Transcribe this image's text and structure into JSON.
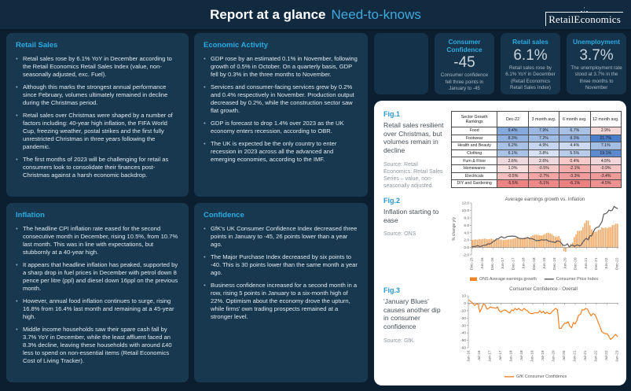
{
  "header": {
    "title_bold": "Report at a glance",
    "title_light": "Need-to-knows",
    "logo_text": "RetailEconomics"
  },
  "colors": {
    "background": "#0c1f30",
    "panel": "#17384f",
    "accent_blue": "#2cabe2",
    "body_text": "#e2eaf1",
    "figure_panel": "#ffffff",
    "orange": "#ef8426",
    "line_gray": "#595959"
  },
  "sections": {
    "retail_sales": {
      "title": "Retail Sales",
      "items": [
        "Retail sales rose by 6.1% YoY in December according to the Retail Economics Retail Sales Index (value, non-seasonally adjusted, exc. Fuel).",
        "Although this marks the strongest annual performance since February, volumes ultimately remained in decline during the Christmas period.",
        "Retail sales over Christmas were shaped by a number of factors including: 40-year high inflation, the FIFA World Cup, freezing weather, postal strikes and the first fully unrestricted Christmas in three years following the pandemic.",
        "The first months of 2023 will be challenging for retail as consumers look to consolidate their finances post-Christmas against a harsh economic backdrop."
      ]
    },
    "inflation": {
      "title": "Inflation",
      "items": [
        "The headline CPI inflation rate eased for the second consecutive month in December, rising 10.5%, from 10.7% last month. This was in line with expectations, but stubbornly at a 40-year high.",
        "It appears that headline inflation has peaked, supported by a sharp drop in fuel prices in December with petrol down 8 pence per litre (ppl) and diesel down 16ppl on the previous month.",
        "However, annual food inflation continues to surge, rising 16.8% from 16.4% last month and remaining at a 45-year high.",
        "Middle income households saw their spare cash fall by 3.7% YoY in December, while the least affluent faced an 8.3% decline, leaving these households with around £40 less to spend on non-essential items (Retail Economics Cost of Living Tracker)."
      ]
    },
    "economic_activity": {
      "title": "Economic Activity",
      "items": [
        "GDP rose by an estimated 0.1% in November, following growth of 0.5% in October. On a quarterly basis, GDP fell by 0.3% in the three months to November.",
        "Services and consumer-facing services grew by 0.2% and 0.4% respectively in November. Production output decreased by 0.2%, while the construction sector saw flat growth.",
        "GDP is forecast to drop 1.4% over 2023 as the UK economy enters recession, according to OBR.",
        "The UK is expected be the only country to enter recession in 2023 across all the advanced and emerging economies, according to the IMF."
      ]
    },
    "confidence": {
      "title": "Confidence",
      "items": [
        "GfK's UK Consumer Confidence Index decreased three points in January to -45, 26 points lower than a year ago.",
        "The Major Purchase Index decreased by six points to -40. This is 30 points lower than the same month a year ago.",
        "Business confidence increased for a second month in a row, rising 5 points in January to a six-month high of 22%. Optimism about the economy drove the upturn, while firms' own trading prospects remained at a stronger level."
      ]
    }
  },
  "stat_cards": [
    {
      "title": "Consumer Confidence",
      "value": "-45",
      "desc": "Consumer confidence fell three points in January to -45"
    },
    {
      "title": "Retail sales",
      "value": "6.1%",
      "desc": "Retail sales rose by 6.1% YoY in December (Retail Economics Retail Sales Index)"
    },
    {
      "title": "Unemployment",
      "value": "3.7%",
      "desc": "The unemployment rate stood at 3.7% in the three months to November"
    }
  ],
  "figures": {
    "fig1": {
      "label": "Fig.1",
      "caption": "Retail sales resilient over Christmas, but volumes remain in decline",
      "source": "Source: Retail Economics: Retail Sales Series – value, non-seasonally adjusted."
    },
    "fig2": {
      "label": "Fig.2",
      "caption": "Inflation starting to ease",
      "source": "Source: ONS"
    },
    "fig3": {
      "label": "Fig.3",
      "caption": "'January Blues' causes another dip in consumer confidence",
      "source": "Source: GfK"
    }
  },
  "chart_data": [
    {
      "type": "table",
      "name": "sector-growth-rankings",
      "headers": [
        "Sector Growth Rankings",
        "Dec-22",
        "3 month avg.",
        "6 month avg.",
        "12 month avg."
      ],
      "rows": [
        {
          "label": "Food",
          "cells": [
            {
              "v": "9.4%",
              "c": "#86a9dc"
            },
            {
              "v": "7.9%",
              "c": "#9bb7e2"
            },
            {
              "v": "6.7%",
              "c": "#a8c0e4"
            },
            {
              "v": "2.9%",
              "c": "#f3d7d7"
            }
          ]
        },
        {
          "label": "Footwear",
          "cells": [
            {
              "v": "8.3%",
              "c": "#90b0df"
            },
            {
              "v": "7.2%",
              "c": "#a0bbe3"
            },
            {
              "v": "8.3%",
              "c": "#93b2e0"
            },
            {
              "v": "21.7%",
              "c": "#4b7dc8"
            }
          ]
        },
        {
          "label": "Health and Beauty",
          "cells": [
            {
              "v": "6.2%",
              "c": "#a9c1e5"
            },
            {
              "v": "4.9%",
              "c": "#c6d5ee"
            },
            {
              "v": "4.4%",
              "c": "#cdd9f0"
            },
            {
              "v": "7.1%",
              "c": "#a3bde3"
            }
          ]
        },
        {
          "label": "Clothing",
          "cells": [
            {
              "v": "6.1%",
              "c": "#aac2e6"
            },
            {
              "v": "3.8%",
              "c": "#d8e1f3"
            },
            {
              "v": "5.5%",
              "c": "#b8cce9"
            },
            {
              "v": "19.1%",
              "c": "#5d89ce"
            }
          ]
        },
        {
          "label": "Furn & Floor",
          "cells": [
            {
              "v": "2.6%",
              "c": "#eed9de"
            },
            {
              "v": "2.6%",
              "c": "#eed9de"
            },
            {
              "v": "0.4%",
              "c": "#f7caca"
            },
            {
              "v": "4.5%",
              "c": "#f0d5da"
            }
          ]
        },
        {
          "label": "Homewares",
          "cells": [
            {
              "v": "1.0%",
              "c": "#f8dfdf"
            },
            {
              "v": "-0.5%",
              "c": "#f6c8c8"
            },
            {
              "v": "-2.1%",
              "c": "#f3acac"
            },
            {
              "v": "-0.9%",
              "c": "#f5c3c3"
            }
          ]
        },
        {
          "label": "Electricals",
          "cells": [
            {
              "v": "-0.5%",
              "c": "#f5bdbd"
            },
            {
              "v": "-2.7%",
              "c": "#f1a5a5"
            },
            {
              "v": "-3.3%",
              "c": "#f09c9c"
            },
            {
              "v": "-3.4%",
              "c": "#f09b9b"
            }
          ]
        },
        {
          "label": "DIY and Gardening",
          "cells": [
            {
              "v": "-5.5%",
              "c": "#ec8484"
            },
            {
              "v": "-5.1%",
              "c": "#ed8989"
            },
            {
              "v": "-6.1%",
              "c": "#eb8080"
            },
            {
              "v": "-4.5%",
              "c": "#ee9191"
            }
          ]
        }
      ]
    },
    {
      "type": "bar",
      "name": "earnings-vs-inflation",
      "title": "Average earnings growth vs. Inflation",
      "ylabel": "% change y/y",
      "ylim": [
        -2,
        12
      ],
      "ytick_step": 2,
      "ydecimals": 1,
      "x_ticklabels": [
        "Dec-15",
        "Jun-16",
        "Dec-16",
        "Jun-17",
        "Dec-17",
        "Jun-18",
        "Dec-18",
        "Jun-19",
        "Dec-19",
        "Jun-20",
        "Dec-20",
        "Jun-21",
        "Dec-21",
        "Jun-22",
        "Dec-22"
      ],
      "x_tick_every": 6,
      "legend_position": "bottom",
      "grid": false,
      "series": [
        {
          "name": "ONS Average earnings growth",
          "type": "bar",
          "color": "#ef8426",
          "values": [
            2.0,
            2.1,
            2.2,
            2.1,
            2.3,
            2.2,
            2.3,
            2.4,
            2.3,
            2.2,
            2.3,
            2.4,
            2.2,
            2.1,
            2.3,
            2.2,
            2.1,
            2.1,
            2.0,
            2.1,
            2.1,
            2.2,
            2.2,
            2.3,
            2.4,
            2.6,
            2.8,
            2.6,
            2.5,
            2.5,
            2.7,
            2.6,
            2.6,
            2.7,
            3.0,
            3.3,
            3.4,
            3.5,
            3.4,
            3.3,
            3.2,
            3.4,
            3.6,
            3.9,
            4.0,
            3.8,
            3.6,
            3.2,
            2.9,
            2.9,
            3.1,
            2.4,
            1.0,
            -1.0,
            -1.2,
            -0.2,
            0.2,
            1.0,
            1.3,
            2.8,
            3.6,
            4.5,
            4.5,
            4.6,
            5.5,
            6.6,
            7.3,
            7.2,
            6.0,
            4.9,
            4.3,
            4.2,
            4.3,
            4.8,
            4.8,
            5.4,
            5.2,
            5.4,
            5.2,
            5.5,
            5.5,
            6.0,
            6.1,
            6.4,
            6.4
          ]
        },
        {
          "name": "Consumer Price Index",
          "type": "line",
          "color": "#595959",
          "values": [
            0.2,
            0.3,
            0.3,
            0.5,
            0.3,
            0.3,
            0.5,
            0.6,
            0.6,
            1.0,
            0.9,
            1.2,
            1.6,
            1.8,
            2.3,
            2.3,
            2.7,
            2.9,
            2.6,
            2.6,
            2.9,
            3.0,
            3.0,
            3.1,
            3.0,
            3.0,
            2.7,
            2.5,
            2.4,
            2.4,
            2.4,
            2.5,
            2.7,
            2.4,
            2.4,
            2.3,
            2.1,
            1.8,
            1.9,
            1.9,
            2.1,
            2.0,
            2.0,
            2.1,
            1.7,
            1.7,
            1.5,
            1.5,
            1.3,
            1.8,
            1.7,
            1.5,
            0.8,
            0.5,
            0.6,
            1.0,
            0.2,
            0.5,
            0.7,
            0.3,
            0.6,
            0.7,
            0.4,
            0.7,
            1.5,
            2.1,
            2.5,
            2.0,
            3.2,
            3.1,
            4.2,
            5.1,
            5.4,
            5.5,
            6.2,
            7.0,
            9.0,
            9.1,
            9.4,
            10.1,
            9.9,
            10.1,
            11.1,
            10.7,
            10.5
          ]
        }
      ]
    },
    {
      "type": "line",
      "name": "consumer-confidence-overall",
      "title": "Consumer Confidence - Overall",
      "ylabel": "",
      "ylim": [
        -60,
        10
      ],
      "ytick_step": 10,
      "ydecimals": 0,
      "x_ticklabels": [
        "Jan-16",
        "Jul-16",
        "Jan-17",
        "Jul-17",
        "Jan-18",
        "Jul-18",
        "Jan-19",
        "Jul-19",
        "Jan-20",
        "Jul-20",
        "Jan-21",
        "Jul-21",
        "Jan-22",
        "Jul-22",
        "Jan-23"
      ],
      "x_tick_every": 6,
      "legend_position": "bottom",
      "grid": false,
      "series": [
        {
          "name": "GfK Consumer Confidence",
          "type": "line",
          "color": "#f08126",
          "values": [
            4,
            2,
            0,
            -3,
            -1,
            -1,
            -12,
            -7,
            -1,
            -2,
            -8,
            -7,
            -5,
            -6,
            -6,
            -7,
            -5,
            -10,
            -12,
            -10,
            -9,
            -10,
            -12,
            -13,
            -9,
            -10,
            -7,
            -9,
            -7,
            -9,
            -10,
            -7,
            -9,
            -10,
            -13,
            -14,
            -14,
            -13,
            -13,
            -13,
            -10,
            -13,
            -11,
            -14,
            -12,
            -14,
            -14,
            -11,
            -9,
            -7,
            -9,
            -34,
            -34,
            -30,
            -27,
            -27,
            -25,
            -31,
            -33,
            -26,
            -28,
            -23,
            -16,
            -15,
            -9,
            -9,
            -7,
            -8,
            -13,
            -17,
            -14,
            -15,
            -19,
            -26,
            -31,
            -38,
            -40,
            -41,
            -41,
            -44,
            -49,
            -47,
            -44,
            -42,
            -45
          ]
        }
      ]
    }
  ]
}
